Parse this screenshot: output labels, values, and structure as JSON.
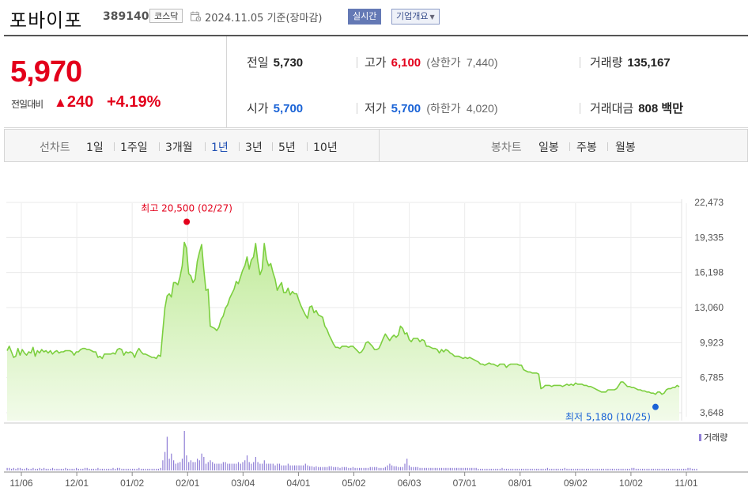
{
  "header": {
    "stock_name": "포바이포",
    "stock_code": "389140",
    "market": "코스닥",
    "date_text": "2024.11.05 기준(장마감)",
    "realtime_label": "실시간",
    "company_label": "기업개요"
  },
  "summary": {
    "current_price": "5,970",
    "change_label": "전일대비",
    "change_value": "240",
    "change_rate": "+4.19%",
    "prev_close_label": "전일",
    "prev_close": "5,730",
    "high_label": "고가",
    "high": "6,100",
    "upper_limit_label": "(상한가",
    "upper_limit": "7,440)",
    "volume_label": "거래량",
    "volume": "135,167",
    "open_label": "시가",
    "open": "5,700",
    "low_label": "저가",
    "low": "5,700",
    "lower_limit_label": "(하한가",
    "lower_limit": "4,020)",
    "amount_label": "거래대금",
    "amount": "808",
    "amount_unit": "백만"
  },
  "colors": {
    "up": "#e3001b",
    "down": "#1a63d6",
    "line": "#7ccf3f",
    "fill": "#c9eea8",
    "volume": "#8f7ed6"
  },
  "period_bar": {
    "line_title": "선차트",
    "line_items": [
      "1일",
      "1주일",
      "3개월",
      "1년",
      "3년",
      "5년",
      "10년"
    ],
    "active_item": "1년",
    "candle_title": "봉차트",
    "candle_items": [
      "일봉",
      "주봉",
      "월봉"
    ]
  },
  "chart_data": {
    "type": "area",
    "title": "",
    "xlabel": "",
    "ylabel": "",
    "ylim": [
      3648,
      22473
    ],
    "y_ticks": [
      "22,473",
      "19,335",
      "16,198",
      "13,060",
      "9,923",
      "6,785",
      "3,648"
    ],
    "x_ticks": [
      "11/06",
      "12/01",
      "01/02",
      "02/01",
      "03/04",
      "04/01",
      "05/02",
      "06/03",
      "07/01",
      "08/01",
      "09/02",
      "10/02",
      "11/01"
    ],
    "grid": true,
    "high_annotation": "최고 20,500 (02/27)",
    "low_annotation": "최저 5,180 (10/25)",
    "volume_legend": "거래량",
    "series": [
      {
        "values": [
          9200,
          9600,
          9100,
          8600,
          8700,
          9400,
          8800,
          9300,
          9000,
          8800,
          9100,
          9000,
          9500,
          8700,
          9200,
          9000,
          9300,
          9100,
          9200,
          9000,
          9200,
          8900,
          9100,
          9200,
          9000,
          9100,
          9100,
          9200,
          9200,
          9200,
          9100,
          8800,
          9100,
          9100,
          9300,
          9400,
          9400,
          9300,
          9300,
          9200,
          9100,
          9100,
          8600,
          8700,
          8500,
          8900,
          8900,
          8900,
          8900,
          9000,
          8900,
          9300,
          9400,
          9300,
          8800,
          9100,
          9000,
          9100,
          9000,
          8600,
          9100,
          9400,
          9100,
          8900,
          8900,
          8800,
          8700,
          8600,
          8600,
          8500,
          8800,
          8700,
          10900,
          13000,
          14100,
          14300,
          14000,
          15300,
          15300,
          15100,
          15800,
          16800,
          18900,
          18400,
          16100,
          15900,
          15300,
          15600,
          17200,
          18000,
          18700,
          16500,
          14600,
          14700,
          11400,
          11300,
          11200,
          11000,
          11300,
          12000,
          12300,
          13000,
          13300,
          13900,
          14300,
          14700,
          15400,
          15200,
          15800,
          16400,
          16800,
          17600,
          16500,
          17300,
          17600,
          18800,
          17200,
          16000,
          16500,
          18800,
          17400,
          16800,
          17000,
          16200,
          15600,
          14600,
          15000,
          15300,
          14400,
          14400,
          14800,
          14200,
          14500,
          14300,
          14300,
          13700,
          13200,
          12800,
          12400,
          12100,
          13100,
          13200,
          12600,
          12800,
          12400,
          12300,
          12200,
          11400,
          11100,
          10600,
          10200,
          9800,
          9500,
          9500,
          9400,
          9600,
          9600,
          9600,
          9500,
          9600,
          9600,
          9400,
          9200,
          9000,
          9100,
          9400,
          9900,
          10000,
          9800,
          9600,
          9300,
          9300,
          9400,
          9800,
          10300,
          10700,
          10400,
          10100,
          10400,
          10600,
          10400,
          10600,
          11400,
          11200,
          10700,
          10800,
          10200,
          10000,
          10300,
          10300,
          10300,
          10000,
          10200,
          10100,
          9600,
          9600,
          9500,
          9400,
          9400,
          9300,
          9000,
          9300,
          9100,
          9300,
          9200,
          9000,
          8900,
          8700,
          8700,
          8700,
          8600,
          8500,
          8600,
          8500,
          8600,
          8500,
          8400,
          8300,
          8200,
          8000,
          8000,
          7900,
          8000,
          8100,
          8000,
          8000,
          7900,
          7800,
          8000,
          8000,
          8000,
          7700,
          7900,
          8000,
          8000,
          8000,
          8000,
          7900,
          7900,
          7500,
          7400,
          7300,
          7300,
          7200,
          7200,
          7200,
          7100,
          5800,
          5900,
          6100,
          6100,
          6100,
          6000,
          6100,
          6100,
          6100,
          6100,
          6000,
          6100,
          6200,
          6100,
          6200,
          6100,
          6300,
          6200,
          6200,
          6200,
          6100,
          6100,
          6000,
          6000,
          5900,
          5800,
          5700,
          5600,
          5500,
          5500,
          5500,
          5700,
          5700,
          5700,
          5700,
          5800,
          6100,
          6400,
          6400,
          6200,
          6000,
          6000,
          5900,
          5900,
          5800,
          5700,
          5700,
          5600,
          5600,
          5500,
          5500,
          5400,
          5400,
          5300,
          5500,
          5500,
          5300,
          5400,
          5700,
          5800,
          5800,
          5900,
          5900,
          6100,
          5970
        ]
      }
    ],
    "volume": [
      3,
      3,
      2,
      3,
      2,
      3,
      3,
      2,
      2,
      3,
      2,
      2,
      3,
      2,
      2,
      3,
      2,
      3,
      2,
      2,
      2,
      3,
      2,
      2,
      2,
      2,
      2,
      3,
      2,
      2,
      2,
      2,
      3,
      2,
      2,
      2,
      3,
      3,
      2,
      2,
      2,
      2,
      3,
      2,
      2,
      2,
      2,
      2,
      2,
      3,
      2,
      3,
      3,
      2,
      2,
      2,
      2,
      2,
      2,
      2,
      2,
      3,
      2,
      2,
      2,
      2,
      2,
      2,
      2,
      2,
      2,
      3,
      12,
      22,
      40,
      14,
      20,
      12,
      8,
      9,
      10,
      14,
      47,
      18,
      10,
      12,
      10,
      10,
      14,
      12,
      20,
      16,
      8,
      10,
      12,
      10,
      8,
      8,
      8,
      8,
      10,
      10,
      8,
      8,
      8,
      8,
      8,
      10,
      8,
      10,
      12,
      18,
      10,
      8,
      10,
      16,
      10,
      8,
      8,
      12,
      8,
      8,
      8,
      8,
      6,
      8,
      8,
      6,
      6,
      6,
      8,
      6,
      6,
      6,
      6,
      6,
      6,
      6,
      8,
      6,
      5,
      5,
      4,
      5,
      4,
      4,
      4,
      4,
      4,
      5,
      5,
      4,
      4,
      4,
      3,
      4,
      4,
      4,
      3,
      3,
      4,
      3,
      3,
      3,
      3,
      3,
      3,
      3,
      4,
      4,
      4,
      4,
      3,
      3,
      3,
      4,
      6,
      8,
      6,
      5,
      5,
      4,
      4,
      4,
      8,
      14,
      6,
      4,
      4,
      4,
      4,
      3,
      3,
      3,
      3,
      3,
      3,
      3,
      3,
      3,
      3,
      3,
      3,
      3,
      3,
      3,
      3,
      3,
      3,
      3,
      3,
      3,
      3,
      3,
      3,
      3,
      3,
      3,
      2,
      2,
      2,
      2,
      2,
      2,
      2,
      2,
      2,
      2,
      2,
      3,
      2,
      2,
      2,
      2,
      2,
      2,
      2,
      2,
      2,
      2,
      2,
      2,
      2,
      2,
      2,
      2,
      2,
      2,
      2,
      2,
      3,
      2,
      2,
      2,
      2,
      2,
      2,
      2,
      3,
      2,
      2,
      2,
      2,
      2,
      2,
      2,
      2,
      2,
      2,
      2,
      2,
      2,
      2,
      2,
      2,
      2,
      2,
      2,
      2,
      2,
      2,
      2,
      2,
      2,
      2,
      2,
      2,
      2,
      2,
      3,
      3,
      2,
      2,
      2,
      2,
      2,
      2,
      2,
      2,
      2,
      2,
      2,
      2,
      2,
      2,
      2,
      2,
      2,
      2,
      2,
      2,
      2,
      2,
      2,
      2,
      3,
      3,
      2,
      2,
      2
    ]
  }
}
